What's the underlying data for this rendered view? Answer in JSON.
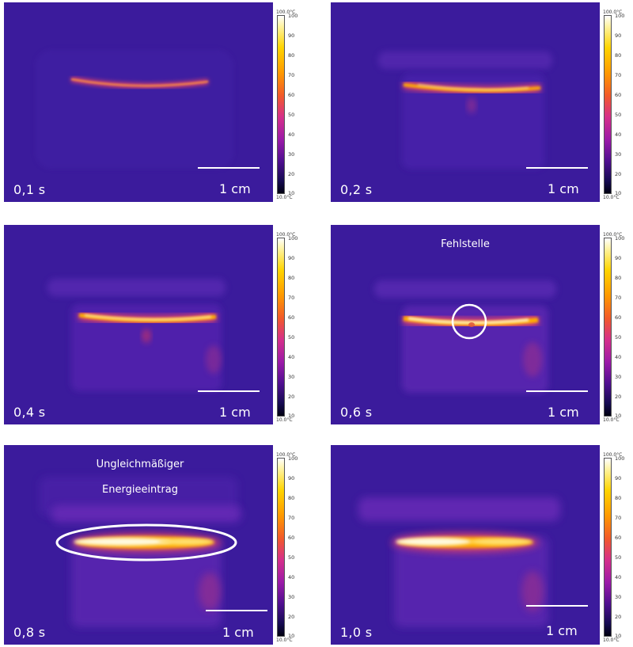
{
  "colorbar": {
    "max_label": "100.0°C",
    "min_label": "10.0°C",
    "ticks": [
      "100",
      "90",
      "80",
      "70",
      "60",
      "50",
      "40",
      "30",
      "20",
      "10"
    ]
  },
  "scale_bar_label": "1 cm",
  "panels": [
    {
      "time": "0,1 s"
    },
    {
      "time": "0,2 s"
    },
    {
      "time": "0,4 s"
    },
    {
      "time": "0,6 s",
      "annotation": "Fehlstelle"
    },
    {
      "time": "0,8 s",
      "annotation_line1": "Ungleichmäßiger",
      "annotation_line2": "Energieeintrag"
    },
    {
      "time": "1,0 s"
    }
  ],
  "colors": {
    "background": "#3b1b9c",
    "hot": "#ffffe0",
    "warm": "#ffb000",
    "glow": "#e8503a"
  }
}
